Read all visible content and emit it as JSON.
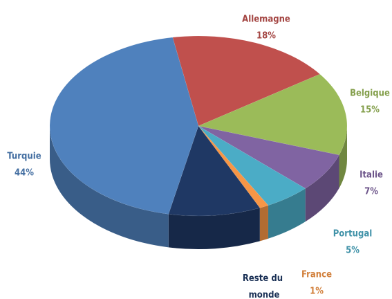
{
  "chart_data": {
    "type": "pie",
    "categories": [
      "Allemagne",
      "Belgique",
      "Italie",
      "Portugal",
      "France",
      "Reste du monde",
      "Turquie"
    ],
    "values": [
      18,
      15,
      7,
      5,
      1,
      10,
      44
    ],
    "value_labels": [
      "18%",
      "15%",
      "7%",
      "5%",
      "1%",
      null,
      "44%"
    ],
    "colors": [
      "#c0504d",
      "#9bbb59",
      "#8064a2",
      "#4bacc6",
      "#f79646",
      "#1f3864",
      "#4f81bd"
    ]
  }
}
